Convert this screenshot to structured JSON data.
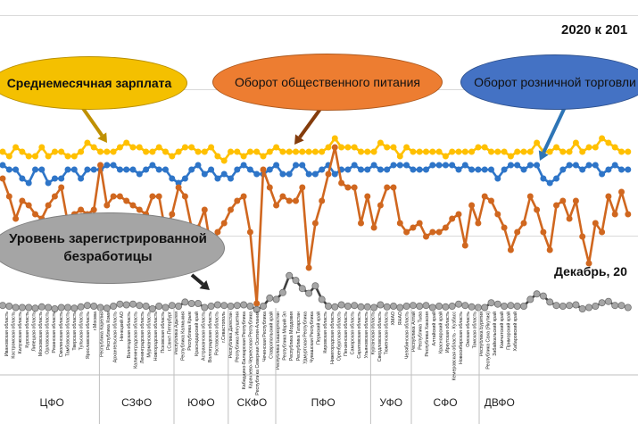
{
  "header": {
    "title_top": "2020 к 201",
    "title_bottom": "Декабрь, 20"
  },
  "bubbles": {
    "wage": "Среднемесячная зарплата",
    "food": "Оборот общественного питания",
    "retail": "Оборот розничной торговли",
    "unemp": "Уровень зарегистрированной безработицы"
  },
  "colors": {
    "wage": "#ffc000",
    "food": "#d0671f",
    "retail": "#2e75c8",
    "unemp": "#404040",
    "unemp_marker": "#a6a6a6"
  },
  "chart_data": [
    {
      "type": "line",
      "title": "2020 к 201",
      "xlabel": "",
      "ylabel": "",
      "series": [
        {
          "name": "Среднемесячная зарплата",
          "color": "#ffc000",
          "values": [
            104,
            103,
            105,
            104,
            103,
            103,
            105,
            103,
            104,
            104,
            103,
            103,
            104,
            106,
            105,
            104,
            104,
            104,
            105,
            106,
            105,
            105,
            104,
            104,
            105,
            104,
            103,
            104,
            105,
            105,
            104,
            104,
            105,
            103,
            102,
            104,
            104,
            103,
            104,
            104,
            103,
            104,
            105,
            104,
            104,
            104,
            104,
            104,
            104,
            104,
            105,
            107,
            105,
            105,
            105,
            104,
            104,
            104,
            106,
            105,
            105,
            103,
            105,
            104,
            104,
            104,
            104,
            104,
            103,
            104,
            104,
            104,
            104,
            105,
            105,
            104,
            104,
            104,
            103,
            104,
            104,
            104,
            106,
            104,
            104,
            105,
            104,
            104,
            106,
            104,
            105,
            105,
            107,
            106,
            105,
            104,
            104
          ]
        },
        {
          "name": "Оборот розничной торговли",
          "color": "#2e75c8",
          "values": [
            101,
            100,
            100,
            98,
            97,
            100,
            100,
            97,
            98,
            98,
            100,
            100,
            98,
            100,
            100,
            100,
            101,
            101,
            100,
            100,
            100,
            99,
            100,
            101,
            100,
            100,
            98,
            97,
            98,
            100,
            101,
            99,
            100,
            98,
            99,
            98,
            100,
            101,
            100,
            99,
            99,
            100,
            101,
            99,
            99,
            101,
            101,
            99,
            99,
            100,
            101,
            99,
            100,
            100,
            101,
            100,
            100,
            101,
            100,
            100,
            101,
            101,
            101,
            100,
            100,
            100,
            101,
            101,
            101,
            101,
            100,
            101,
            100,
            100,
            100,
            100,
            98,
            100,
            101,
            101,
            100,
            101,
            101,
            98,
            97,
            98,
            100,
            101,
            101,
            100,
            101,
            101,
            99,
            100,
            101,
            100,
            100
          ]
        },
        {
          "name": "Оборот общественного питания",
          "color": "#d0671f",
          "values": [
            98,
            94,
            89,
            93,
            92,
            90,
            89,
            92,
            94,
            96,
            88,
            90,
            91,
            90,
            91,
            101,
            92,
            94,
            94,
            93,
            92,
            91,
            90,
            94,
            94,
            86,
            90,
            96,
            94,
            87,
            87,
            91,
            82,
            86,
            88,
            91,
            93,
            94,
            86,
            70,
            100,
            96,
            92,
            94,
            93,
            93,
            96,
            78,
            88,
            93,
            99,
            105,
            97,
            96,
            96,
            88,
            94,
            87,
            92,
            96,
            96,
            88,
            86,
            87,
            88,
            85,
            86,
            86,
            87,
            89,
            90,
            83,
            92,
            88,
            94,
            93,
            90,
            87,
            82,
            86,
            88,
            94,
            91,
            86,
            82,
            92,
            93,
            89,
            93,
            85,
            79,
            88,
            86,
            94,
            90,
            95,
            90
          ]
        }
      ]
    },
    {
      "type": "line",
      "title": "Декабрь, 20",
      "xlabel": "",
      "ylabel": "",
      "series": [
        {
          "name": "Уровень зарегистрированной безработицы",
          "color": "#404040",
          "values": [
            5.1,
            5.0,
            4.8,
            4.8,
            4.8,
            4.7,
            4.9,
            4.8,
            4.6,
            4.8,
            4.8,
            4.7,
            4.9,
            5.1,
            5.0,
            4.8,
            4.7,
            5.0,
            5.3,
            5.2,
            5.3,
            5.1,
            5.0,
            4.6,
            5.0,
            4.8,
            5.1,
            5.0,
            5.6,
            5.4,
            5.4,
            4.8,
            5.0,
            5.2,
            5.1,
            5.0,
            5.1,
            5.2,
            5.0,
            4.5,
            5.0,
            6.2,
            6.0,
            7.0,
            9.5,
            8.8,
            7.6,
            6.9,
            8.0,
            6.0,
            5.0,
            4.9,
            5.2,
            5.0,
            5.1,
            4.9,
            4.9,
            4.8,
            5.2,
            4.9,
            5.0,
            4.8,
            5.0,
            5.1,
            5.0,
            5.1,
            4.8,
            5.0,
            4.9,
            5.0,
            5.3,
            5.1,
            4.9,
            4.8,
            4.8,
            5.5,
            5.3,
            5.0,
            5.1,
            5.0,
            5.0,
            6.0,
            6.8,
            6.5,
            5.6,
            5.1,
            5.0,
            5.1,
            5.2,
            4.6,
            4.8,
            5.0,
            5.5,
            5.7,
            5.1,
            5.1,
            4.8
          ]
        }
      ]
    }
  ],
  "regions": [
    "Ивановская область",
    "Костромская область",
    "Калужская область",
    "Курская область",
    "Липецкая область",
    "Московская область",
    "Орловская область",
    "Рязанская область",
    "Смоленская область",
    "Тамбовская область",
    "Тверская область",
    "Тульская область",
    "Ярославская область",
    "г.Москва",
    "Республика Карелия",
    "Республика Коми",
    "Архангельская область",
    "Ненецкий АО",
    "Вологодская область",
    "Калининградская область",
    "Ленинградская область",
    "Мурманская область",
    "Новгородская область",
    "Псковская область",
    "г.Санкт-Петербург",
    "Республика Адыгея",
    "Республика Калмыкия",
    "Республика Крым",
    "Краснодарский край",
    "Астраханская область",
    "Волгоградская область",
    "Ростовская область",
    "г.Севастополь",
    "Республика Дагестан",
    "Республика Ингушетия",
    "Кабардино-Балкарская Республика",
    "Карачаево-Черкесская Республика",
    "Республика Северная Осетия-Алания",
    "Чеченская Республика",
    "Ставропольский край",
    "Республика Башкортостан",
    "Республика Марий Эл",
    "Республика Мордовия",
    "Республика Татарстан",
    "Удмуртская Республика",
    "Чувашская Республика",
    "Пермский край",
    "Кировская область",
    "Нижегородская область",
    "Оренбургская область",
    "Пензенская область",
    "Самарская область",
    "Саратовская область",
    "Ульяновская область",
    "Курганская область",
    "Свердловская область",
    "Тюменская область",
    "ХМАО",
    "ЯНАО",
    "Челябинская область",
    "Республика Алтай",
    "Республика Тыва",
    "Республика Хакасия",
    "Алтайский край",
    "Красноярский край",
    "Иркутская область",
    "Кемеровская область - Кузбасс",
    "Новосибирская область",
    "Омская область",
    "Томская область",
    "Республика Бурятия",
    "Республика Саха (Якутия)",
    "Забайкальский край",
    "Камчатский край",
    "Приморский край",
    "Хабаровский край"
  ],
  "districts": [
    "ЦФО",
    "СЗФО",
    "ЮФО",
    "СКФО",
    "ПФО",
    "УФО",
    "СФО",
    "ДВФО"
  ]
}
